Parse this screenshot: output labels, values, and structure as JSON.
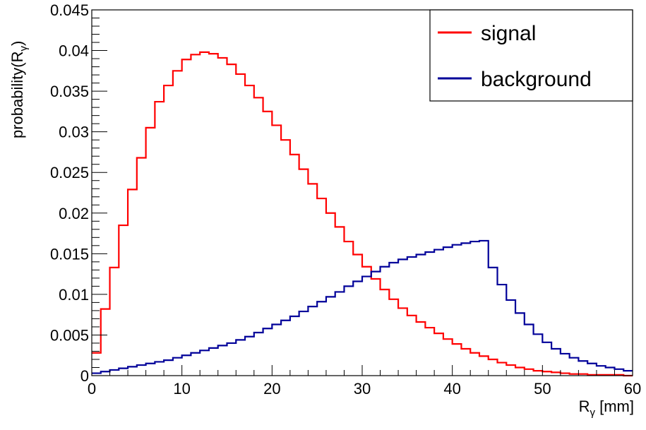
{
  "chart_data": {
    "type": "line",
    "style": "step-histogram",
    "xlabel": "R",
    "xlabel_sub": "γ",
    "xlabel_unit": " [mm]",
    "ylabel": "probability(R",
    "ylabel_sub": "γ",
    "ylabel_close": ")",
    "xlim": [
      0,
      60
    ],
    "ylim": [
      0,
      0.045
    ],
    "x_ticks": [
      "0",
      "10",
      "20",
      "30",
      "40",
      "50",
      "60"
    ],
    "y_ticks": [
      "0",
      "0.005",
      "0.01",
      "0.015",
      "0.02",
      "0.025",
      "0.03",
      "0.035",
      "0.04",
      "0.045"
    ],
    "bin_edges_start": 0,
    "bin_width": 1,
    "legend_position": "top-right",
    "grid": false,
    "series": [
      {
        "name": "signal",
        "color": "#ff0000",
        "values": [
          0.0028,
          0.0082,
          0.0133,
          0.0185,
          0.0229,
          0.0268,
          0.0305,
          0.0337,
          0.0357,
          0.0375,
          0.0389,
          0.0395,
          0.0398,
          0.0396,
          0.0391,
          0.0383,
          0.0371,
          0.0357,
          0.0342,
          0.0325,
          0.0308,
          0.029,
          0.0272,
          0.0254,
          0.0236,
          0.0218,
          0.02,
          0.0183,
          0.0165,
          0.0149,
          0.0134,
          0.0119,
          0.0106,
          0.0094,
          0.0083,
          0.0074,
          0.0066,
          0.0059,
          0.0052,
          0.0045,
          0.0039,
          0.0033,
          0.0028,
          0.0024,
          0.002,
          0.0016,
          0.0013,
          0.001,
          0.0008,
          0.0006,
          0.0005,
          0.0004,
          0.0003,
          0.0002,
          0.0002,
          0.0001,
          0.0001,
          0.0001,
          0.0001,
          0.0
        ]
      },
      {
        "name": "background",
        "color": "#000099",
        "values": [
          0.0003,
          0.0005,
          0.0007,
          0.0009,
          0.0011,
          0.0013,
          0.0015,
          0.0017,
          0.0019,
          0.0022,
          0.0025,
          0.0028,
          0.0031,
          0.0034,
          0.0037,
          0.004,
          0.0044,
          0.0048,
          0.0053,
          0.0058,
          0.0063,
          0.0068,
          0.0073,
          0.0079,
          0.0085,
          0.0091,
          0.0097,
          0.0103,
          0.011,
          0.0116,
          0.0122,
          0.0128,
          0.0134,
          0.0139,
          0.0143,
          0.0146,
          0.0149,
          0.0152,
          0.0155,
          0.0158,
          0.0161,
          0.0163,
          0.0165,
          0.0166,
          0.0133,
          0.0112,
          0.0093,
          0.0077,
          0.0063,
          0.0051,
          0.0041,
          0.0033,
          0.0027,
          0.0022,
          0.0018,
          0.0015,
          0.0012,
          0.001,
          0.0008,
          0.0006
        ]
      }
    ]
  }
}
